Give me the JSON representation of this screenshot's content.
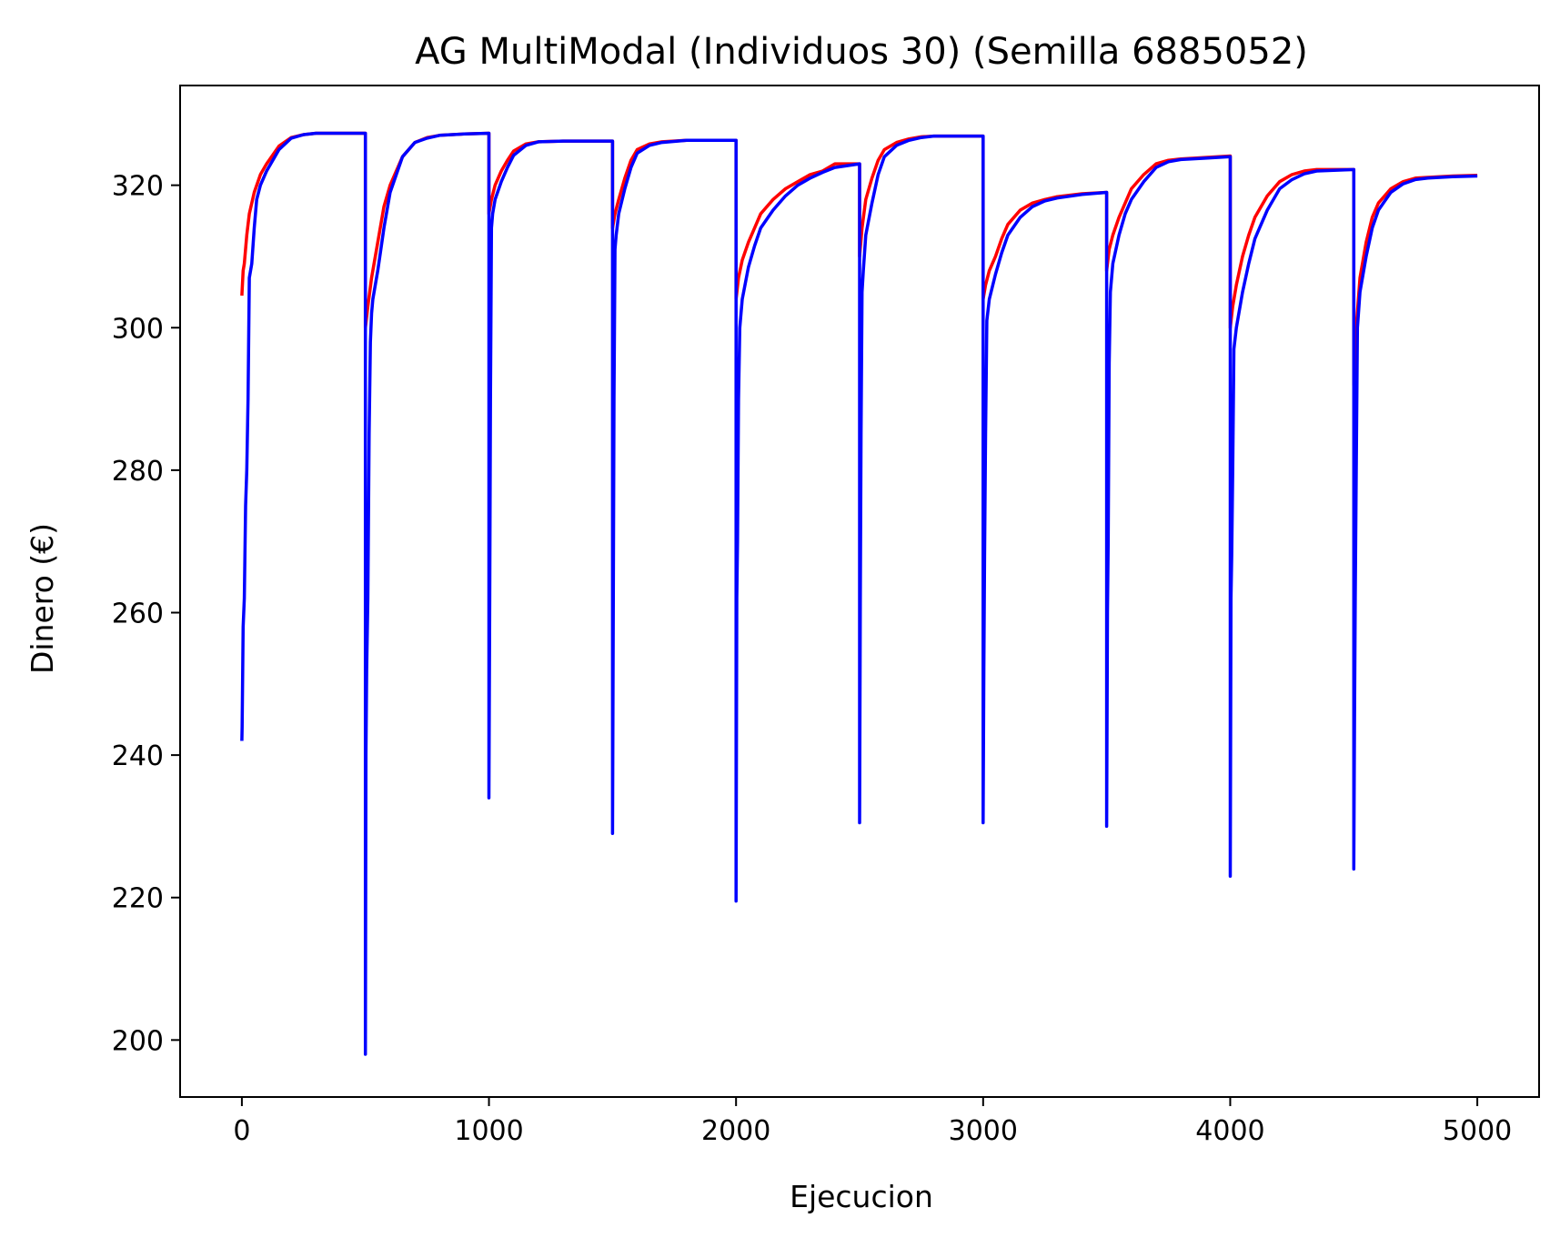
{
  "chart_data": {
    "type": "line",
    "title": "AG MultiModal (Individuos 30) (Semilla 6885052)",
    "xlabel": "Ejecucion",
    "ylabel": "Dinero (€)",
    "xlim": [
      -250,
      5250
    ],
    "ylim": [
      192,
      334
    ],
    "xticks": [
      0,
      1000,
      2000,
      3000,
      4000,
      5000
    ],
    "yticks": [
      200,
      220,
      240,
      260,
      280,
      300,
      320
    ],
    "grid": false,
    "legend": "none",
    "series": [
      {
        "color": "#ff0000",
        "segments": [
          {
            "x": [
              0,
              5,
              10,
              20,
              30,
              50,
              75,
              100,
              150,
              200,
              250,
              300,
              500
            ],
            "y": [
              304.5,
              308,
              309,
              313,
              316,
              319,
              321.5,
              323,
              325.5,
              326.7,
              327.1,
              327.3,
              327.3
            ]
          },
          {
            "x": [
              500,
              510,
              525,
              550,
              575,
              600,
              650,
              700,
              750,
              800,
              900,
              1000
            ],
            "y": [
              300,
              303,
              307,
              312,
              317,
              320,
              324,
              326,
              326.7,
              327,
              327.2,
              327.3
            ]
          },
          {
            "x": [
              1000,
              1010,
              1025,
              1050,
              1075,
              1100,
              1150,
              1200,
              1300,
              1500
            ],
            "y": [
              316,
              318,
              320,
              322,
              323.5,
              324.8,
              325.8,
              326.1,
              326.2,
              326.2
            ]
          },
          {
            "x": [
              1500,
              1510,
              1525,
              1550,
              1575,
              1600,
              1650,
              1700,
              1800,
              2000
            ],
            "y": [
              314,
              316,
              318,
              321,
              323.5,
              325,
              325.8,
              326.1,
              326.3,
              326.3
            ]
          },
          {
            "x": [
              2000,
              2010,
              2025,
              2050,
              2075,
              2100,
              2150,
              2200,
              2250,
              2300,
              2350,
              2400,
              2500
            ],
            "y": [
              304,
              307,
              309.5,
              312,
              314,
              316,
              318,
              319.5,
              320.5,
              321.5,
              322,
              323,
              323
            ]
          },
          {
            "x": [
              2500,
              2510,
              2525,
              2550,
              2575,
              2600,
              2650,
              2700,
              2750,
              2800,
              3000
            ],
            "y": [
              310,
              314,
              318,
              321,
              323.5,
              325,
              326,
              326.5,
              326.8,
              326.9,
              326.9
            ]
          },
          {
            "x": [
              3000,
              3010,
              3025,
              3050,
              3075,
              3100,
              3150,
              3200,
              3250,
              3300,
              3400,
              3500
            ],
            "y": [
              304,
              306,
              308,
              310,
              312.5,
              314.5,
              316.5,
              317.5,
              318,
              318.4,
              318.8,
              319
            ]
          },
          {
            "x": [
              3500,
              3510,
              3525,
              3550,
              3575,
              3600,
              3650,
              3700,
              3750,
              3800,
              3900,
              4000
            ],
            "y": [
              308,
              311,
              313,
              315.5,
              317.5,
              319.5,
              321.5,
              323,
              323.5,
              323.7,
              323.9,
              324.1
            ]
          },
          {
            "x": [
              4000,
              4010,
              4025,
              4050,
              4075,
              4100,
              4150,
              4200,
              4250,
              4300,
              4350,
              4500
            ],
            "y": [
              300,
              303,
              306,
              310,
              313,
              315.5,
              318.5,
              320.5,
              321.5,
              322,
              322.2,
              322.2
            ]
          },
          {
            "x": [
              4500,
              4510,
              4525,
              4550,
              4575,
              4600,
              4650,
              4700,
              4750,
              4800,
              4900,
              5000
            ],
            "y": [
              292,
              300,
              307,
              312,
              315.5,
              317.5,
              319.5,
              320.5,
              321,
              321.1,
              321.3,
              321.4
            ]
          }
        ]
      },
      {
        "color": "#0000ff",
        "segments": [
          {
            "x": [
              0,
              1,
              5,
              10,
              15,
              20,
              25,
              30,
              40,
              50,
              60,
              75,
              100,
              150,
              200,
              250,
              300,
              500
            ],
            "y": [
              242,
              244,
              258,
              262,
              275,
              280,
              290,
              307,
              309,
              314,
              318,
              320,
              322,
              325,
              326.6,
              327.1,
              327.3,
              327.3
            ]
          },
          {
            "x": [
              500,
              502,
              505,
              510,
              515,
              520,
              525,
              530,
              550,
              575,
              600,
              650,
              700,
              750,
              800,
              900,
              1000
            ],
            "y": [
              198,
              240,
              252,
              262,
              285,
              298,
              302,
              304,
              308,
              314,
              319,
              324,
              326,
              326.6,
              327,
              327.2,
              327.3
            ]
          },
          {
            "x": [
              1000,
              1003,
              1006,
              1010,
              1015,
              1025,
              1050,
              1075,
              1100,
              1150,
              1200,
              1300,
              1500
            ],
            "y": [
              234,
              262,
              290,
              314,
              316,
              318,
              320.5,
              322.5,
              324.2,
              325.6,
              326.1,
              326.2,
              326.2
            ]
          },
          {
            "x": [
              1500,
              1503,
              1506,
              1510,
              1515,
              1525,
              1550,
              1575,
              1600,
              1650,
              1700,
              1800,
              2000
            ],
            "y": [
              229,
              260,
              290,
              311,
              313,
              316,
              319.5,
              322.5,
              324.5,
              325.6,
              326,
              326.3,
              326.3
            ]
          },
          {
            "x": [
              2000,
              2003,
              2006,
              2010,
              2015,
              2025,
              2050,
              2075,
              2100,
              2150,
              2200,
              2250,
              2300,
              2350,
              2400,
              2500
            ],
            "y": [
              219.5,
              262,
              270,
              290,
              300,
              304,
              308.5,
              311.5,
              314,
              316.5,
              318.5,
              320,
              321,
              321.8,
              322.5,
              323
            ]
          },
          {
            "x": [
              2500,
              2503,
              2506,
              2510,
              2515,
              2525,
              2550,
              2575,
              2600,
              2650,
              2700,
              2750,
              2800,
              3000
            ],
            "y": [
              230.5,
              262,
              285,
              305,
              308,
              313,
              317.5,
              321.5,
              324,
              325.6,
              326.3,
              326.7,
              326.9,
              326.9
            ]
          },
          {
            "x": [
              3000,
              3003,
              3006,
              3010,
              3015,
              3025,
              3050,
              3075,
              3100,
              3150,
              3200,
              3250,
              3300,
              3400,
              3500
            ],
            "y": [
              230.5,
              252,
              268,
              285,
              301,
              304,
              307.5,
              310.5,
              313,
              315.5,
              317,
              317.8,
              318.2,
              318.7,
              319
            ]
          },
          {
            "x": [
              3500,
              3503,
              3506,
              3510,
              3515,
              3525,
              3550,
              3575,
              3600,
              3650,
              3700,
              3750,
              3800,
              3900,
              4000
            ],
            "y": [
              230,
              260,
              270,
              295,
              305,
              309,
              313,
              316,
              318,
              320.5,
              322.5,
              323.3,
              323.6,
              323.8,
              324
            ]
          },
          {
            "x": [
              4000,
              4003,
              4006,
              4010,
              4015,
              4025,
              4050,
              4075,
              4100,
              4150,
              4200,
              4250,
              4300,
              4350,
              4500
            ],
            "y": [
              223,
              262,
              268,
              280,
              297,
              300,
              305,
              309,
              312.5,
              316.5,
              319.5,
              320.8,
              321.6,
              322,
              322.2
            ]
          },
          {
            "x": [
              4500,
              4503,
              4506,
              4510,
              4515,
              4525,
              4550,
              4575,
              4600,
              4650,
              4700,
              4750,
              4800,
              4900,
              5000
            ],
            "y": [
              224,
              245,
              262,
              280,
              300,
              305,
              310,
              314,
              316.5,
              319,
              320.2,
              320.8,
              321,
              321.2,
              321.3
            ]
          }
        ]
      }
    ]
  }
}
